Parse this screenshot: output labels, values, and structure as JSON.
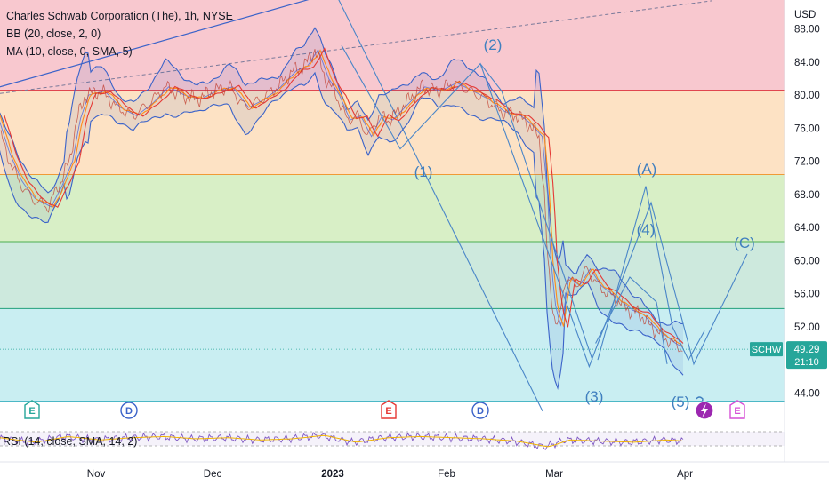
{
  "legend": {
    "title": "Charles Schwab Corporation (The), 1h, NYSE",
    "bb": "BB (20, close, 2, 0)",
    "ma": "MA (10, close, 0, SMA, 5)"
  },
  "rsi_label": "RSI (14, close, SMA, 14, 2)",
  "currency": "USD",
  "colors": {
    "fib_zones": [
      "#f8c8cf",
      "#fde2c4",
      "#d8efc6",
      "#cde9dd",
      "#c9eef2"
    ],
    "fib_lines": [
      "#e0464f",
      "#f09a36",
      "#4cae50",
      "#22a07a",
      "#22a5b8"
    ],
    "wave_label": "#3f7fbf",
    "wave_lines": "#4a86c8",
    "price_badge": "#26a69a",
    "ma_orange": "#ff8c1a",
    "ma_red": "#e53935",
    "bb_blue": "#3b63c9"
  },
  "chart_data": {
    "type": "line",
    "title": "Charles Schwab Corporation (The), 1h, NYSE",
    "symbol": "SCHW",
    "last_price": "49.29",
    "countdown": "21:10",
    "y_axis": {
      "unit": "USD",
      "ticks": [
        "88.00",
        "84.00",
        "80.00",
        "76.00",
        "72.00",
        "68.00",
        "64.00",
        "60.00",
        "56.00",
        "52.00",
        "48.00",
        "44.00"
      ],
      "range": [
        40.5,
        91.5
      ]
    },
    "x_axis": {
      "ticks": [
        "Nov",
        "Dec",
        "2023",
        "Feb",
        "Mar",
        "Apr"
      ]
    },
    "fib_levels": [
      80.6,
      70.4,
      62.3,
      54.2,
      43.0
    ],
    "price_series": [
      [
        -0.5,
        77.5
      ],
      [
        0.6,
        73.0
      ],
      [
        1.8,
        69.5
      ],
      [
        3.0,
        67.5
      ],
      [
        4.5,
        66.5
      ],
      [
        5.5,
        69.0
      ],
      [
        6.5,
        72.0
      ],
      [
        7.2,
        77.0
      ],
      [
        8.0,
        80.0
      ],
      [
        9.5,
        80.5
      ],
      [
        11.0,
        78.5
      ],
      [
        12.5,
        77.5
      ],
      [
        14.0,
        79.0
      ],
      [
        15.5,
        81.0
      ],
      [
        17.0,
        80.0
      ],
      [
        18.5,
        79.5
      ],
      [
        20.0,
        80.5
      ],
      [
        21.5,
        81.0
      ],
      [
        23.0,
        78.5
      ],
      [
        24.5,
        79.5
      ],
      [
        26.0,
        81.0
      ],
      [
        27.5,
        83.0
      ],
      [
        28.5,
        83.5
      ],
      [
        29.5,
        85.5
      ],
      [
        30.5,
        82.0
      ],
      [
        31.5,
        80.0
      ],
      [
        32.5,
        77.0
      ],
      [
        33.5,
        77.5
      ],
      [
        34.5,
        75.0
      ],
      [
        35.5,
        77.5
      ],
      [
        36.5,
        77.0
      ],
      [
        38.0,
        79.0
      ],
      [
        39.5,
        81.0
      ],
      [
        41.0,
        80.5
      ],
      [
        42.5,
        81.5
      ],
      [
        44.0,
        80.5
      ],
      [
        45.5,
        79.5
      ],
      [
        47.0,
        78.0
      ],
      [
        48.5,
        77.5
      ],
      [
        49.5,
        76.5
      ],
      [
        50.5,
        75.0
      ],
      [
        51.0,
        68.0
      ],
      [
        51.3,
        60.0
      ],
      [
        51.8,
        54.0
      ],
      [
        52.3,
        52.0
      ],
      [
        53.0,
        58.0
      ],
      [
        54.0,
        57.0
      ],
      [
        55.0,
        59.0
      ],
      [
        56.0,
        57.0
      ],
      [
        57.0,
        56.0
      ],
      [
        58.0,
        55.0
      ],
      [
        59.0,
        54.0
      ],
      [
        60.0,
        53.5
      ],
      [
        61.0,
        52.0
      ],
      [
        62.0,
        51.0
      ],
      [
        63.0,
        50.0
      ],
      [
        64.0,
        49.3
      ]
    ],
    "rsi_series": [
      [
        -0.5,
        0.55
      ],
      [
        3,
        0.35
      ],
      [
        6,
        0.6
      ],
      [
        9,
        0.45
      ],
      [
        12,
        0.55
      ],
      [
        15,
        0.6
      ],
      [
        18,
        0.5
      ],
      [
        21,
        0.55
      ],
      [
        24,
        0.45
      ],
      [
        27,
        0.5
      ],
      [
        30,
        0.65
      ],
      [
        33,
        0.35
      ],
      [
        36,
        0.55
      ],
      [
        39,
        0.6
      ],
      [
        42,
        0.55
      ],
      [
        45,
        0.5
      ],
      [
        48,
        0.4
      ],
      [
        51,
        0.15
      ],
      [
        53,
        0.45
      ],
      [
        56,
        0.4
      ],
      [
        59,
        0.35
      ],
      [
        62,
        0.45
      ],
      [
        64,
        0.4
      ]
    ],
    "wave_labels": [
      "(1)",
      "(2)",
      "(3)",
      "(A)",
      "(4)",
      "(5)",
      "(C)"
    ],
    "events": [
      "E",
      "D",
      "E",
      "D",
      "E"
    ]
  }
}
